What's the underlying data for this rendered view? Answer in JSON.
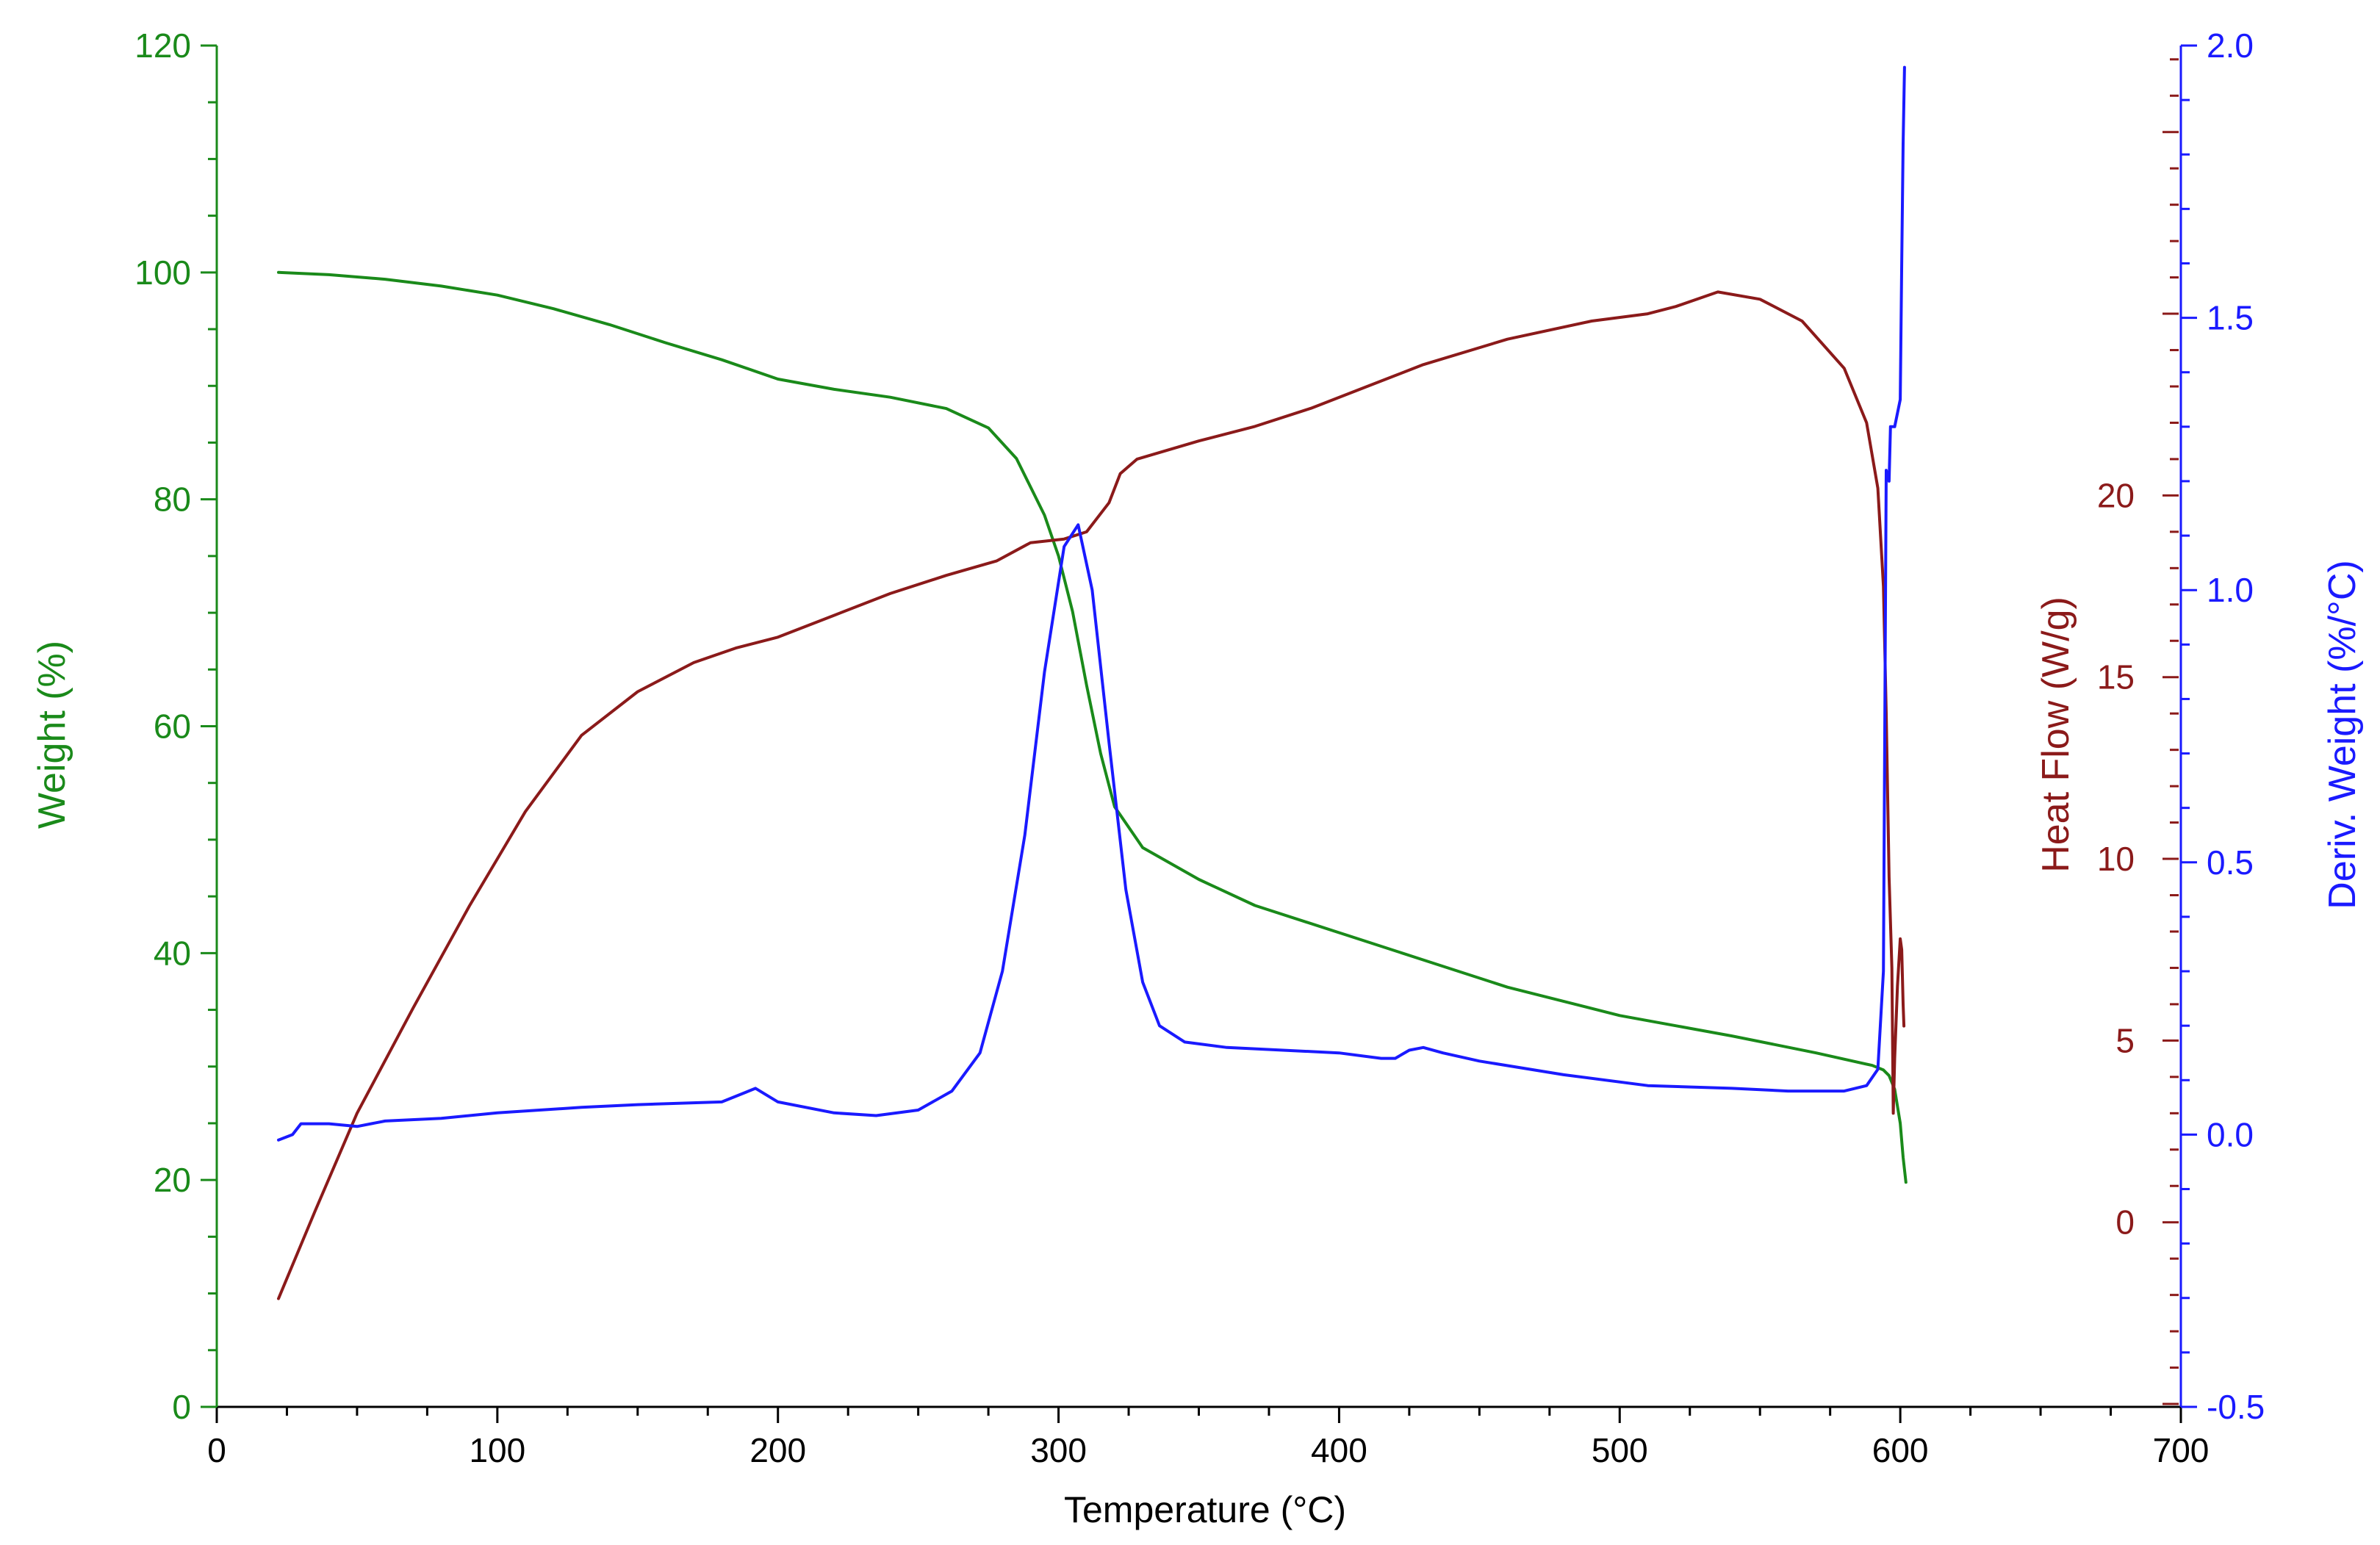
{
  "chart_data": {
    "type": "line",
    "title": "",
    "xlabel": "Temperature (°C)",
    "xlim": [
      0,
      700
    ],
    "xticks": [
      0,
      100,
      200,
      300,
      400,
      500,
      600,
      700
    ],
    "grid": false,
    "legend": "none",
    "axes": {
      "weight": {
        "label": "Weight (%)",
        "side": "left",
        "color": "#1a8a1a",
        "lim": [
          0,
          120
        ],
        "ticks": [
          0,
          20,
          40,
          60,
          80,
          100,
          120
        ]
      },
      "heat": {
        "label": "Heat Flow (W/g)",
        "side": "right-inner",
        "color": "#8b1a1a",
        "lim": [
          -5.08,
          32.38
        ],
        "ticks": [
          0,
          5,
          10,
          15,
          20
        ]
      },
      "deriv": {
        "label": "Deriv. Weight (%/°C)",
        "side": "right",
        "color": "#1a1aff",
        "lim": [
          -0.5,
          2.0
        ],
        "ticks": [
          -0.5,
          0.0,
          0.5,
          1.0,
          1.5,
          2.0
        ]
      }
    },
    "series": [
      {
        "key": "weight",
        "axis": "weight",
        "color": "#1a8a1a",
        "points": [
          [
            22,
            100
          ],
          [
            40,
            99.8
          ],
          [
            60,
            99.4
          ],
          [
            80,
            98.8
          ],
          [
            100,
            98.0
          ],
          [
            120,
            96.8
          ],
          [
            140,
            95.4
          ],
          [
            160,
            93.8
          ],
          [
            180,
            92.3
          ],
          [
            200,
            90.6
          ],
          [
            220,
            89.7
          ],
          [
            240,
            89.0
          ],
          [
            260,
            88.0
          ],
          [
            275,
            86.3
          ],
          [
            285,
            83.6
          ],
          [
            295,
            78.6
          ],
          [
            300,
            75.0
          ],
          [
            305,
            70.1
          ],
          [
            310,
            63.6
          ],
          [
            315,
            57.6
          ],
          [
            320,
            52.9
          ],
          [
            330,
            49.3
          ],
          [
            350,
            46.5
          ],
          [
            370,
            44.2
          ],
          [
            400,
            41.8
          ],
          [
            430,
            39.4
          ],
          [
            460,
            37.0
          ],
          [
            500,
            34.5
          ],
          [
            540,
            32.7
          ],
          [
            570,
            31.2
          ],
          [
            590,
            30.1
          ],
          [
            594,
            29.7
          ],
          [
            596,
            29.2
          ],
          [
            598,
            28.0
          ],
          [
            600,
            25.0
          ],
          [
            601,
            22.0
          ],
          [
            602,
            19.8
          ]
        ]
      },
      {
        "key": "heat",
        "axis": "heat",
        "color": "#8b1a1a",
        "points": [
          [
            22,
            -2.1
          ],
          [
            35,
            0.3
          ],
          [
            50,
            3.0
          ],
          [
            70,
            5.9
          ],
          [
            90,
            8.7
          ],
          [
            110,
            11.3
          ],
          [
            130,
            13.4
          ],
          [
            150,
            14.6
          ],
          [
            170,
            15.4
          ],
          [
            185,
            15.8
          ],
          [
            200,
            16.1
          ],
          [
            220,
            16.7
          ],
          [
            240,
            17.3
          ],
          [
            260,
            17.8
          ],
          [
            278,
            18.2
          ],
          [
            290,
            18.7
          ],
          [
            302,
            18.8
          ],
          [
            310,
            19.0
          ],
          [
            318,
            19.8
          ],
          [
            322,
            20.6
          ],
          [
            328,
            21.0
          ],
          [
            350,
            21.5
          ],
          [
            370,
            21.9
          ],
          [
            390,
            22.4
          ],
          [
            410,
            23.0
          ],
          [
            430,
            23.6
          ],
          [
            460,
            24.3
          ],
          [
            490,
            24.8
          ],
          [
            510,
            25.0
          ],
          [
            520,
            25.2
          ],
          [
            535,
            25.6
          ],
          [
            550,
            25.4
          ],
          [
            565,
            24.8
          ],
          [
            580,
            23.5
          ],
          [
            588,
            22.0
          ],
          [
            592,
            20.2
          ],
          [
            594,
            17.5
          ],
          [
            595,
            14.0
          ],
          [
            596,
            9.5
          ],
          [
            597,
            7.0
          ],
          [
            597.5,
            3.0
          ],
          [
            598,
            4.5
          ],
          [
            599,
            6.5
          ],
          [
            600,
            7.8
          ],
          [
            600.5,
            7.5
          ],
          [
            601,
            6.0
          ],
          [
            601.3,
            5.4
          ]
        ]
      },
      {
        "key": "deriv",
        "axis": "deriv",
        "color": "#1a1aff",
        "points": [
          [
            22,
            -0.01
          ],
          [
            27,
            0.0
          ],
          [
            30,
            0.02
          ],
          [
            40,
            0.02
          ],
          [
            50,
            0.015
          ],
          [
            60,
            0.025
          ],
          [
            80,
            0.03
          ],
          [
            100,
            0.04
          ],
          [
            130,
            0.05
          ],
          [
            150,
            0.055
          ],
          [
            180,
            0.06
          ],
          [
            192,
            0.085
          ],
          [
            200,
            0.06
          ],
          [
            220,
            0.04
          ],
          [
            235,
            0.035
          ],
          [
            250,
            0.045
          ],
          [
            262,
            0.08
          ],
          [
            272,
            0.15
          ],
          [
            280,
            0.3
          ],
          [
            288,
            0.55
          ],
          [
            295,
            0.85
          ],
          [
            302,
            1.08
          ],
          [
            307,
            1.12
          ],
          [
            312,
            1.0
          ],
          [
            318,
            0.72
          ],
          [
            324,
            0.45
          ],
          [
            330,
            0.28
          ],
          [
            336,
            0.2
          ],
          [
            345,
            0.17
          ],
          [
            360,
            0.16
          ],
          [
            380,
            0.155
          ],
          [
            400,
            0.15
          ],
          [
            415,
            0.14
          ],
          [
            420,
            0.14
          ],
          [
            425,
            0.155
          ],
          [
            430,
            0.16
          ],
          [
            437,
            0.15
          ],
          [
            450,
            0.135
          ],
          [
            480,
            0.11
          ],
          [
            510,
            0.09
          ],
          [
            540,
            0.085
          ],
          [
            560,
            0.08
          ],
          [
            580,
            0.08
          ],
          [
            588,
            0.09
          ],
          [
            592,
            0.12
          ],
          [
            594,
            0.3
          ],
          [
            595,
            1.22
          ],
          [
            596,
            1.2
          ],
          [
            596.5,
            1.3
          ],
          [
            598,
            1.3
          ],
          [
            600,
            1.35
          ],
          [
            600.5,
            1.6
          ],
          [
            601,
            1.82
          ],
          [
            601.5,
            1.96
          ]
        ]
      }
    ]
  }
}
